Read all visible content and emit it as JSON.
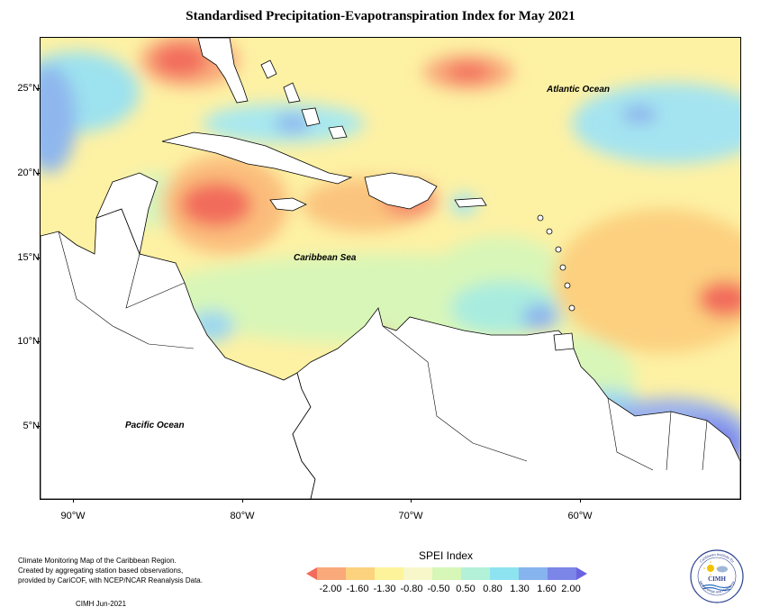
{
  "title": "Standardised Precipitation-Evapotranspiration Index for May 2021",
  "map": {
    "lat_labels": [
      "25°N",
      "20°N",
      "15°N",
      "10°N",
      "5°N"
    ],
    "lon_labels": [
      "90°W",
      "80°W",
      "70°W",
      "60°W"
    ],
    "labels": {
      "atlantic": "Atlantic Ocean",
      "caribbean": "Caribbean Sea",
      "pacific": "Pacific Ocean"
    }
  },
  "legend": {
    "title": "SPEI Index",
    "values": [
      "-2.00",
      "-1.60",
      "-1.30",
      "-0.80",
      "-0.50",
      "0.50",
      "0.80",
      "1.30",
      "1.60",
      "2.00"
    ],
    "colors": [
      "#f26c5b",
      "#f9a97a",
      "#fcd27f",
      "#fdf39a",
      "#f7f7c9",
      "#d6f7b7",
      "#b3f2d8",
      "#8ee3f0",
      "#86b4ee",
      "#7b86e8",
      "#6a63e0"
    ]
  },
  "credits": {
    "line1": "Climate Monitoring Map of the Caribbean Region.",
    "line2": "Created by aggregating station based observations,",
    "line3": "provided by CariCOF, with NCEP/NCAR Reanalysis Data.",
    "date": "CIMH  Jun-2021"
  },
  "logo": {
    "text": "CIMH",
    "ring_top": "Caribbean Institute for",
    "ring_bottom": "Meteorology and Hydrology"
  }
}
